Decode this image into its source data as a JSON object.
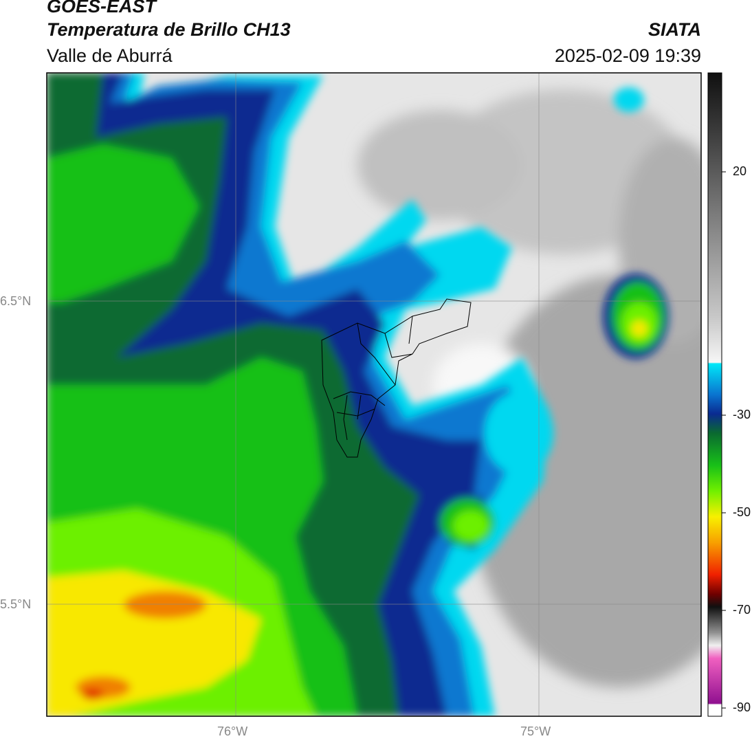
{
  "header": {
    "title": "GOES-EAST",
    "subtitle": "Temperatura de Brillo CH13",
    "region": "Valle de Aburrá",
    "brand": "SIATA",
    "datetime": "2025-02-09 19:39"
  },
  "map": {
    "lat_ticks": [
      "6.5°N",
      "5.5°N"
    ],
    "lon_ticks": [
      "76°W",
      "75°W"
    ],
    "extent": {
      "lon": [
        -76.62,
        -74.45
      ],
      "lat": [
        5.14,
        7.25
      ]
    },
    "colors": {
      "warm_gray_light": "#f2f2f2",
      "gray_mid": "#a0a0a0",
      "cyan": "#00e0f0",
      "blue": "#0a5fc0",
      "navy": "#082a90",
      "dark_green": "#0a6a30",
      "green": "#18c018",
      "lime": "#6cf000",
      "yellow": "#f8e800",
      "orange": "#f08000",
      "red": "#e02000"
    }
  },
  "colorbar": {
    "ticks": [
      "20",
      "-30",
      "-50",
      "-70",
      "-90"
    ],
    "tick_values": [
      20,
      -30,
      -50,
      -70,
      -90
    ],
    "range": [
      -92,
      38
    ]
  }
}
